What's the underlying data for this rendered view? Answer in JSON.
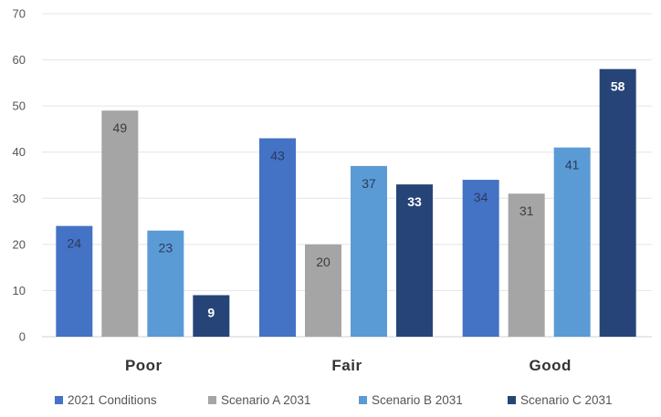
{
  "chart_data": {
    "type": "bar",
    "categories": [
      "Poor",
      "Fair",
      "Good"
    ],
    "series": [
      {
        "name": "2021 Conditions",
        "values": [
          24,
          43,
          34
        ],
        "color": "#4472c4",
        "label_color": "#2a3b5c"
      },
      {
        "name": "Scenario A 2031",
        "values": [
          49,
          20,
          31
        ],
        "color": "#a5a5a5",
        "label_color": "#3c3c3c"
      },
      {
        "name": "Scenario B 2031",
        "values": [
          23,
          37,
          41
        ],
        "color": "#5b9bd5",
        "label_color": "#2a3b5c"
      },
      {
        "name": "Scenario C 2031",
        "values": [
          9,
          33,
          58
        ],
        "color": "#264478",
        "label_color": "#ffffff"
      }
    ],
    "yticks": [
      0,
      10,
      20,
      30,
      40,
      50,
      60,
      70
    ],
    "ylim": [
      0,
      70
    ],
    "grid": true,
    "legend_position": "bottom",
    "title": "",
    "xlabel": "",
    "ylabel": ""
  }
}
